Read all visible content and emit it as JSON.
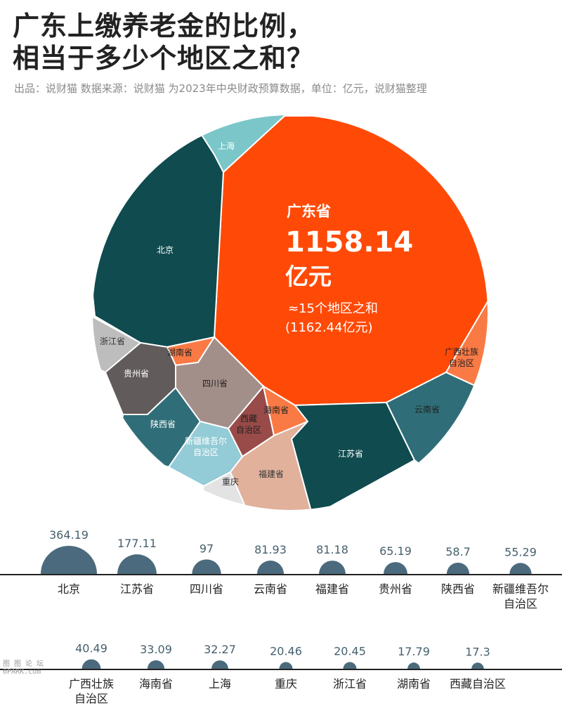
{
  "header": {
    "title_line1": "广东上缴养老金的比例，",
    "title_line2": "相当于多少个地区之和？",
    "subtitle": "出品：说财猫   数据来源：说财猫   为2023年中央财政预算数据，单位：亿元，说财猫整理"
  },
  "colors": {
    "guangdong": "#ff4a07",
    "dark_teal": "#0f4b4f",
    "mid_teal": "#2f6e78",
    "light_teal": "#7bc6c8",
    "light_blue": "#93cbd6",
    "orange": "#fa7a45",
    "taupe": "#a38f8a",
    "dark_grey": "#625b5b",
    "grey": "#bdbdbd",
    "light_grey": "#e3e3e3",
    "peach": "#e1b19c",
    "brown_red": "#984b48",
    "bubble": "#4b6a7d"
  },
  "chart_data": [
    {
      "type": "voronoi-treemap",
      "unit": "亿元",
      "highlight": {
        "name": "广东省",
        "value": 1158.14,
        "value_label": "1158.14",
        "unit_label": "亿元",
        "note_line1": "≈15个地区之和",
        "note_line2": "(1162.44亿元)"
      },
      "cells": [
        {
          "name": "北京",
          "value": 364.19
        },
        {
          "name": "上海",
          "value": 32.27
        },
        {
          "name": "浙江省",
          "value": 20.45
        },
        {
          "name": "湖南省",
          "value": 17.79
        },
        {
          "name": "贵州省",
          "value": 65.19
        },
        {
          "name": "四川省",
          "value": 97
        },
        {
          "name": "陕西省",
          "value": 58.7
        },
        {
          "name": "新疆维吾尔\n自治区",
          "value": 55.29
        },
        {
          "name": "重庆",
          "value": 20.46
        },
        {
          "name": "西藏\n自治区",
          "value": 17.3
        },
        {
          "name": "海南省",
          "value": 33.09
        },
        {
          "name": "福建省",
          "value": 81.18
        },
        {
          "name": "江苏省",
          "value": 177.11
        },
        {
          "name": "云南省",
          "value": 81.93
        },
        {
          "name": "广西壮族\n自治区",
          "value": 40.49
        }
      ]
    },
    {
      "type": "bubble",
      "unit": "亿元",
      "rows": [
        {
          "items": [
            {
              "label": "北京",
              "value": 364.19
            },
            {
              "label": "江苏省",
              "value": 177.11
            },
            {
              "label": "四川省",
              "value": 97
            },
            {
              "label": "云南省",
              "value": 81.93
            },
            {
              "label": "福建省",
              "value": 81.18
            },
            {
              "label": "贵州省",
              "value": 65.19
            },
            {
              "label": "陕西省",
              "value": 58.7
            },
            {
              "label": "新疆维吾尔\n自治区",
              "value": 55.29
            }
          ]
        },
        {
          "items": [
            {
              "label": "广西壮族\n自治区",
              "value": 40.49
            },
            {
              "label": "海南省",
              "value": 33.09
            },
            {
              "label": "上海",
              "value": 32.27
            },
            {
              "label": "重庆",
              "value": 20.46
            },
            {
              "label": "浙江省",
              "value": 20.45
            },
            {
              "label": "湖南省",
              "value": 17.79
            },
            {
              "label": "西藏自治区",
              "value": 17.3
            }
          ]
        }
      ]
    }
  ],
  "watermark": {
    "line1": "图 图 论 坛",
    "line2": "6PARK.com"
  }
}
